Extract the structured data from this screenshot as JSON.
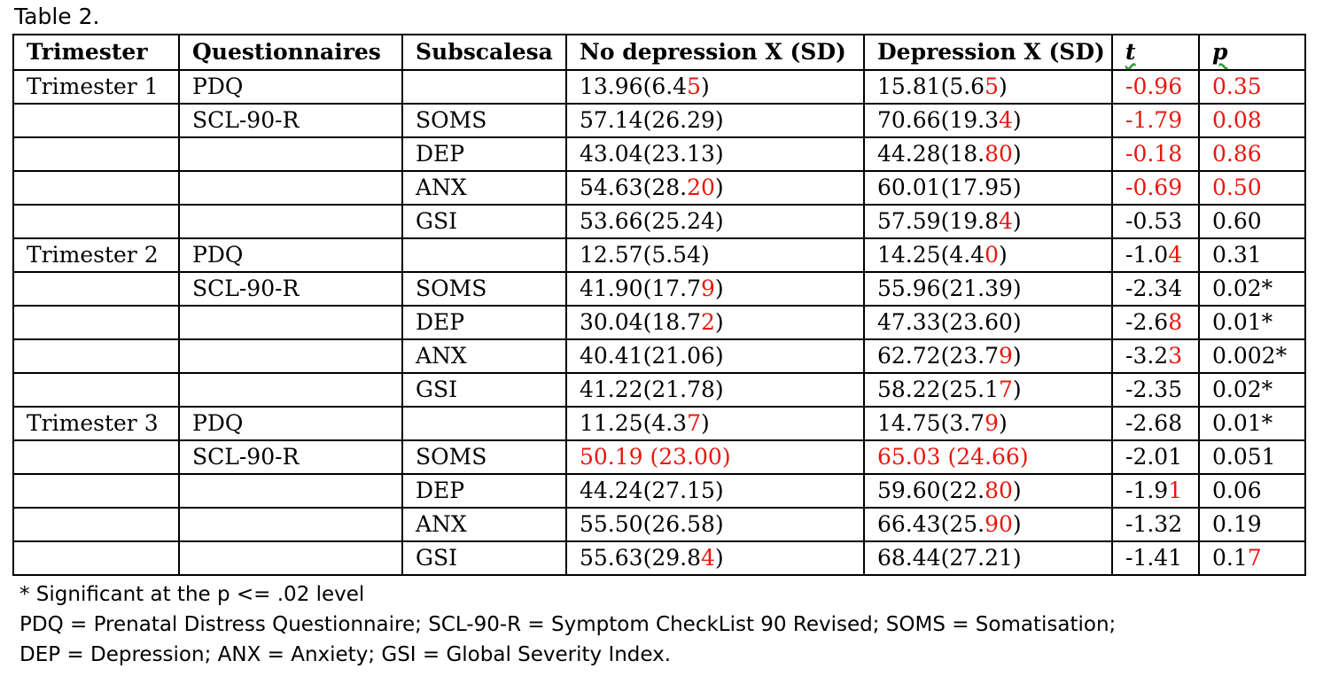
{
  "caption": "Table 2.",
  "colors": {
    "highlight": "#e8170f",
    "spellcheck_underline": "#2a9a2a"
  },
  "headers": [
    "Trimester",
    "Questionnaires",
    "Subscalesa",
    "No depression X (SD)",
    "Depression X (SD)",
    "t",
    "p"
  ],
  "rows": [
    {
      "tri": "Trimester 1",
      "q": "PDQ",
      "sub": "",
      "nd": [
        [
          "13.96(6.4",
          0
        ],
        [
          "5",
          1
        ],
        [
          ")",
          0
        ]
      ],
      "d": [
        [
          "15.81(5.6",
          0
        ],
        [
          "5",
          1
        ],
        [
          ")",
          0
        ]
      ],
      "t": [
        [
          "-0.96",
          1
        ]
      ],
      "p": [
        [
          "0.35",
          1
        ]
      ]
    },
    {
      "tri": "",
      "q": "SCL-90-R",
      "sub": "SOMS",
      "nd": [
        [
          "57.14(26.29)",
          0
        ]
      ],
      "d": [
        [
          "70.66(19.3",
          0
        ],
        [
          "4",
          1
        ],
        [
          ")",
          0
        ]
      ],
      "t": [
        [
          "-1.79",
          1
        ]
      ],
      "p": [
        [
          "0.08",
          1
        ]
      ]
    },
    {
      "tri": "",
      "q": "",
      "sub": "DEP",
      "nd": [
        [
          "43.04(23.13)",
          0
        ]
      ],
      "d": [
        [
          "44.28(18.",
          0
        ],
        [
          "80",
          1
        ],
        [
          ")",
          0
        ]
      ],
      "t": [
        [
          "-0.18",
          1
        ]
      ],
      "p": [
        [
          "0.86",
          1
        ]
      ]
    },
    {
      "tri": "",
      "q": "",
      "sub": "ANX",
      "nd": [
        [
          "54.63(28.",
          0
        ],
        [
          "20",
          1
        ],
        [
          ")",
          0
        ]
      ],
      "d": [
        [
          "60.01(17.95)",
          0
        ]
      ],
      "t": [
        [
          "-0.69",
          1
        ]
      ],
      "p": [
        [
          "0.50",
          1
        ]
      ]
    },
    {
      "tri": "",
      "q": "",
      "sub": "GSI",
      "nd": [
        [
          "53.66(25.24)",
          0
        ]
      ],
      "d": [
        [
          "57.59(19.8",
          0
        ],
        [
          "4",
          1
        ],
        [
          ")",
          0
        ]
      ],
      "t": [
        [
          "-0.53",
          0
        ]
      ],
      "p": [
        [
          "0.60",
          0
        ]
      ]
    },
    {
      "tri": "Trimester 2",
      "q": "PDQ",
      "sub": "",
      "nd": [
        [
          "12.57(5.54)",
          0
        ]
      ],
      "d": [
        [
          "14.25(4.4",
          0
        ],
        [
          "0",
          1
        ],
        [
          ")",
          0
        ]
      ],
      "t": [
        [
          "-1.0",
          0
        ],
        [
          "4",
          1
        ]
      ],
      "p": [
        [
          "0.31",
          0
        ]
      ]
    },
    {
      "tri": "",
      "q": "SCL-90-R",
      "sub": "SOMS",
      "nd": [
        [
          "41.90(17.7",
          0
        ],
        [
          "9",
          1
        ],
        [
          ")",
          0
        ]
      ],
      "d": [
        [
          "55.96(21.39)",
          0
        ]
      ],
      "t": [
        [
          "-2.34",
          0
        ]
      ],
      "p": [
        [
          "0.02*",
          0
        ]
      ]
    },
    {
      "tri": "",
      "q": "",
      "sub": "DEP",
      "nd": [
        [
          "30.04(18.7",
          0
        ],
        [
          "2",
          1
        ],
        [
          ")",
          0
        ]
      ],
      "d": [
        [
          "47.33(23.60)",
          0
        ]
      ],
      "t": [
        [
          "-2.6",
          0
        ],
        [
          "8",
          1
        ]
      ],
      "p": [
        [
          "0.01*",
          0
        ]
      ]
    },
    {
      "tri": "",
      "q": "",
      "sub": "ANX",
      "nd": [
        [
          "40.41(21.06)",
          0
        ]
      ],
      "d": [
        [
          "62.72(23.7",
          0
        ],
        [
          "9",
          1
        ],
        [
          ")",
          0
        ]
      ],
      "t": [
        [
          "-3.2",
          0
        ],
        [
          "3",
          1
        ]
      ],
      "p": [
        [
          "0.002*",
          0
        ]
      ]
    },
    {
      "tri": "",
      "q": "",
      "sub": "GSI",
      "nd": [
        [
          "41.22(21.78)",
          0
        ]
      ],
      "d": [
        [
          "58.22(25.1",
          0
        ],
        [
          "7",
          1
        ],
        [
          ")",
          0
        ]
      ],
      "t": [
        [
          "-2.35",
          0
        ]
      ],
      "p": [
        [
          "0.02*",
          0
        ]
      ]
    },
    {
      "tri": "Trimester 3",
      "q": "PDQ",
      "sub": "",
      "nd": [
        [
          "11.25(4.3",
          0
        ],
        [
          "7",
          1
        ],
        [
          ")",
          0
        ]
      ],
      "d": [
        [
          "14.75(3.7",
          0
        ],
        [
          "9",
          1
        ],
        [
          ")",
          0
        ]
      ],
      "t": [
        [
          "-2.68",
          0
        ]
      ],
      "p": [
        [
          "0.01*",
          0
        ]
      ]
    },
    {
      "tri": "",
      "q": "SCL-90-R",
      "sub": "SOMS",
      "nd": [
        [
          "50.19 (23.00)",
          1
        ]
      ],
      "d": [
        [
          "65.03 (24.66)",
          1
        ]
      ],
      "t": [
        [
          "-2.01",
          0
        ]
      ],
      "p": [
        [
          "0.051",
          0
        ]
      ]
    },
    {
      "tri": "",
      "q": "",
      "sub": "DEP",
      "nd": [
        [
          "44.24(27.15)",
          0
        ]
      ],
      "d": [
        [
          "59.60(22.",
          0
        ],
        [
          "80",
          1
        ],
        [
          ")",
          0
        ]
      ],
      "t": [
        [
          "-1.9",
          0
        ],
        [
          "1",
          1
        ]
      ],
      "p": [
        [
          "0.06",
          0
        ]
      ]
    },
    {
      "tri": "",
      "q": "",
      "sub": "ANX",
      "nd": [
        [
          "55.50(26.58)",
          0
        ]
      ],
      "d": [
        [
          "66.43(25.",
          0
        ],
        [
          "90",
          1
        ],
        [
          ")",
          0
        ]
      ],
      "t": [
        [
          "-1.32",
          0
        ]
      ],
      "p": [
        [
          "0.19",
          0
        ]
      ]
    },
    {
      "tri": "",
      "q": "",
      "sub": "GSI",
      "nd": [
        [
          "55.63(29.8",
          0
        ],
        [
          "4",
          1
        ],
        [
          ")",
          0
        ]
      ],
      "d": [
        [
          "68.44(27.21)",
          0
        ]
      ],
      "t": [
        [
          "-1.41",
          0
        ]
      ],
      "p": [
        [
          "0.1",
          0
        ],
        [
          "7",
          1
        ]
      ]
    }
  ],
  "notes": [
    "* Significant at the p <= .02 level",
    "PDQ = Prenatal Distress Questionnaire; SCL-90-R = Symptom CheckList 90 Revised; SOMS = Somatisation;",
    "DEP = Depression; ANX = Anxiety; GSI = Global Severity Index."
  ]
}
